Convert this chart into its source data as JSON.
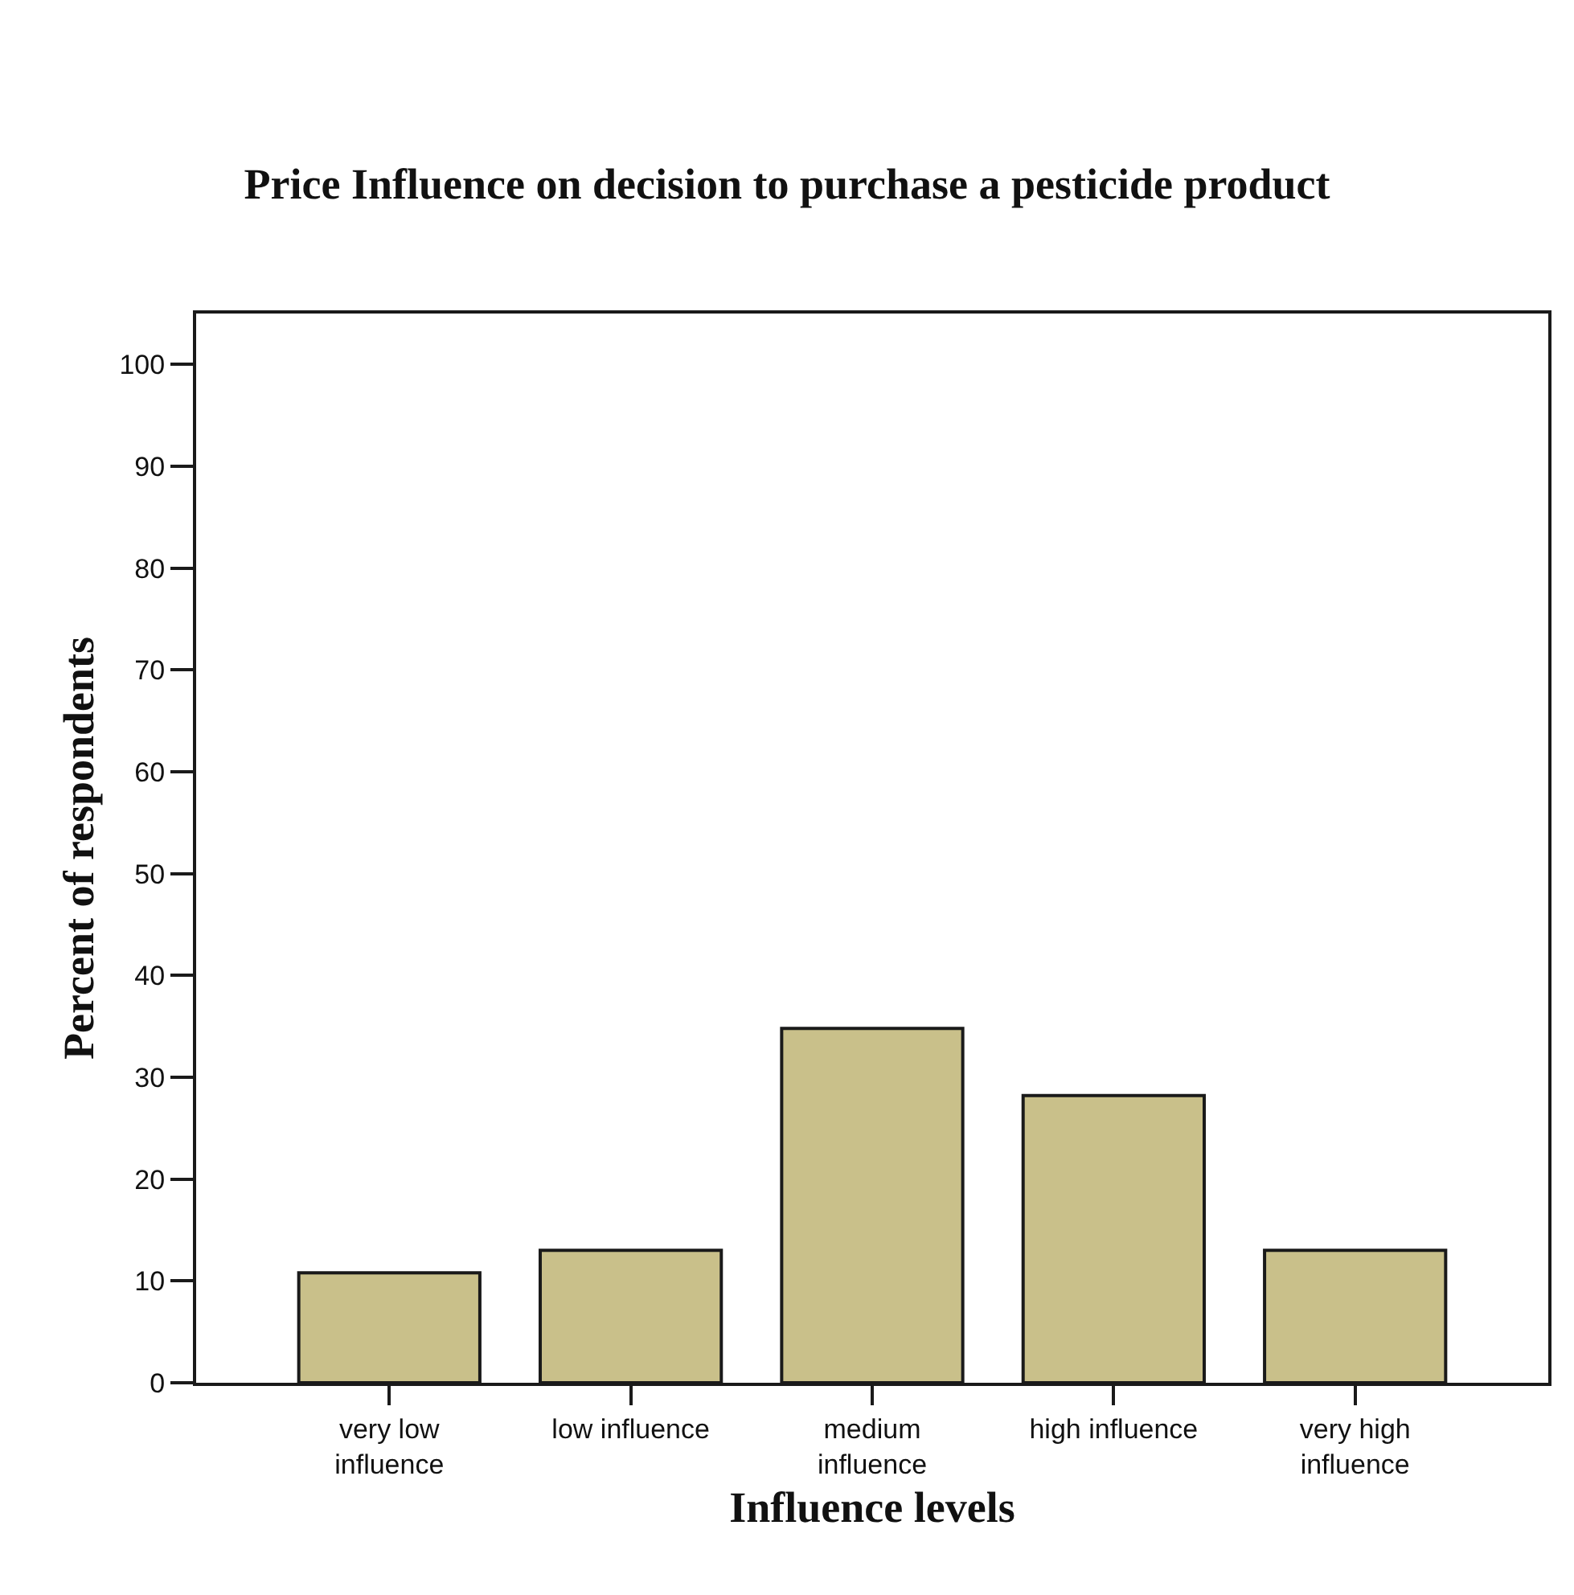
{
  "chart_data": {
    "type": "bar",
    "title": "Price Influence on decision to purchase a pesticide product",
    "xlabel": "Influence levels",
    "ylabel": "Percent of respondents",
    "categories": [
      "very low\ninfluence",
      "low influence",
      "medium\ninfluence",
      "high influence",
      "very high\ninfluence"
    ],
    "values": [
      10.8,
      13,
      34.8,
      28.2,
      13
    ],
    "color": "#c9c08a",
    "ylim": [
      0,
      105
    ],
    "yticks": [
      0,
      10,
      20,
      30,
      40,
      50,
      60,
      70,
      80,
      90,
      100
    ]
  }
}
